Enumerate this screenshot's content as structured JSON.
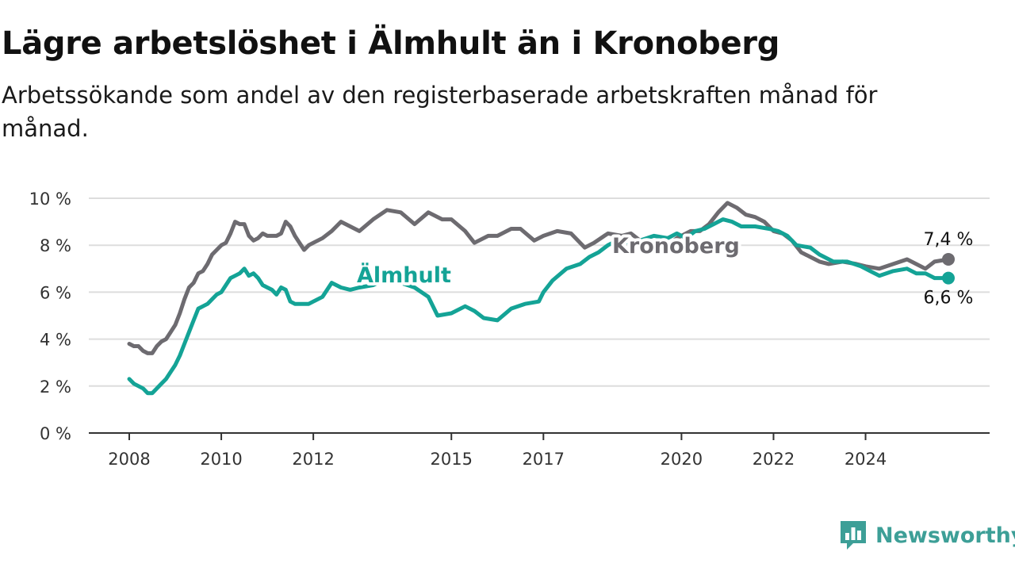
{
  "title": "Lägre arbetslöshet i Älmhult än i Kronoberg",
  "subtitle": "Arbetssökande som andel av den registerbaserade arbetskraften månad för månad.",
  "brand": {
    "name": "Newsworthy",
    "icon": "newsworthy-logo-icon",
    "color": "#3d9f97"
  },
  "colors": {
    "almhult": "#14a396",
    "kronoberg": "#6d6b70",
    "grid": "#dddddd",
    "axis": "#333333"
  },
  "chart_data": {
    "type": "line",
    "xlabel": "",
    "ylabel": "",
    "ylim": [
      0,
      10
    ],
    "xlim": [
      2008,
      2025.8
    ],
    "yticks": [
      0,
      2,
      4,
      6,
      8,
      10
    ],
    "ytick_labels": [
      "0 %",
      "2 %",
      "4 %",
      "6 %",
      "8 %",
      "10 %"
    ],
    "xticks": [
      2008,
      2010,
      2012,
      2015,
      2017,
      2020,
      2022,
      2024
    ],
    "xtick_labels": [
      "2008",
      "2010",
      "2012",
      "2015",
      "2017",
      "2020",
      "2022",
      "2024"
    ],
    "grid": true,
    "legend": "direct labels on lines",
    "series": [
      {
        "name": "Kronoberg",
        "end_label": "7,4 %",
        "points": [
          [
            2008.0,
            3.8
          ],
          [
            2008.1,
            3.7
          ],
          [
            2008.2,
            3.7
          ],
          [
            2008.3,
            3.5
          ],
          [
            2008.4,
            3.4
          ],
          [
            2008.5,
            3.4
          ],
          [
            2008.6,
            3.7
          ],
          [
            2008.7,
            3.9
          ],
          [
            2008.8,
            4.0
          ],
          [
            2008.9,
            4.3
          ],
          [
            2009.0,
            4.6
          ],
          [
            2009.1,
            5.1
          ],
          [
            2009.2,
            5.7
          ],
          [
            2009.3,
            6.2
          ],
          [
            2009.4,
            6.4
          ],
          [
            2009.5,
            6.8
          ],
          [
            2009.6,
            6.9
          ],
          [
            2009.7,
            7.2
          ],
          [
            2009.8,
            7.6
          ],
          [
            2009.9,
            7.8
          ],
          [
            2010.0,
            8.0
          ],
          [
            2010.1,
            8.1
          ],
          [
            2010.2,
            8.5
          ],
          [
            2010.3,
            9.0
          ],
          [
            2010.4,
            8.9
          ],
          [
            2010.5,
            8.9
          ],
          [
            2010.6,
            8.4
          ],
          [
            2010.7,
            8.2
          ],
          [
            2010.8,
            8.3
          ],
          [
            2010.9,
            8.5
          ],
          [
            2011.0,
            8.4
          ],
          [
            2011.1,
            8.4
          ],
          [
            2011.2,
            8.4
          ],
          [
            2011.3,
            8.5
          ],
          [
            2011.4,
            9.0
          ],
          [
            2011.5,
            8.8
          ],
          [
            2011.6,
            8.4
          ],
          [
            2011.7,
            8.1
          ],
          [
            2011.8,
            7.8
          ],
          [
            2011.9,
            8.0
          ],
          [
            2012.0,
            8.1
          ],
          [
            2012.2,
            8.3
          ],
          [
            2012.4,
            8.6
          ],
          [
            2012.6,
            9.0
          ],
          [
            2012.8,
            8.8
          ],
          [
            2013.0,
            8.6
          ],
          [
            2013.3,
            9.1
          ],
          [
            2013.6,
            9.5
          ],
          [
            2013.9,
            9.4
          ],
          [
            2014.2,
            8.9
          ],
          [
            2014.5,
            9.4
          ],
          [
            2014.8,
            9.1
          ],
          [
            2015.0,
            9.1
          ],
          [
            2015.3,
            8.6
          ],
          [
            2015.5,
            8.1
          ],
          [
            2015.8,
            8.4
          ],
          [
            2016.0,
            8.4
          ],
          [
            2016.3,
            8.7
          ],
          [
            2016.5,
            8.7
          ],
          [
            2016.8,
            8.2
          ],
          [
            2017.0,
            8.4
          ],
          [
            2017.3,
            8.6
          ],
          [
            2017.6,
            8.5
          ],
          [
            2017.9,
            7.9
          ],
          [
            2018.1,
            8.1
          ],
          [
            2018.4,
            8.5
          ],
          [
            2018.7,
            8.4
          ],
          [
            2018.9,
            8.5
          ],
          [
            2019.1,
            8.2
          ],
          [
            2019.4,
            8.1
          ],
          [
            2019.7,
            8.0
          ],
          [
            2019.9,
            8.3
          ],
          [
            2020.2,
            8.6
          ],
          [
            2020.4,
            8.6
          ],
          [
            2020.6,
            8.9
          ],
          [
            2020.8,
            9.4
          ],
          [
            2021.0,
            9.8
          ],
          [
            2021.2,
            9.6
          ],
          [
            2021.4,
            9.3
          ],
          [
            2021.6,
            9.2
          ],
          [
            2021.8,
            9.0
          ],
          [
            2022.0,
            8.6
          ],
          [
            2022.2,
            8.5
          ],
          [
            2022.4,
            8.2
          ],
          [
            2022.6,
            7.7
          ],
          [
            2022.8,
            7.5
          ],
          [
            2023.0,
            7.3
          ],
          [
            2023.2,
            7.2
          ],
          [
            2023.5,
            7.3
          ],
          [
            2023.8,
            7.2
          ],
          [
            2024.0,
            7.1
          ],
          [
            2024.3,
            7.0
          ],
          [
            2024.6,
            7.2
          ],
          [
            2024.9,
            7.4
          ],
          [
            2025.1,
            7.2
          ],
          [
            2025.3,
            7.0
          ],
          [
            2025.5,
            7.3
          ],
          [
            2025.8,
            7.4
          ]
        ]
      },
      {
        "name": "Älmhult",
        "end_label": "6,6 %",
        "points": [
          [
            2008.0,
            2.3
          ],
          [
            2008.1,
            2.1
          ],
          [
            2008.2,
            2.0
          ],
          [
            2008.3,
            1.9
          ],
          [
            2008.4,
            1.7
          ],
          [
            2008.5,
            1.7
          ],
          [
            2008.6,
            1.9
          ],
          [
            2008.7,
            2.1
          ],
          [
            2008.8,
            2.3
          ],
          [
            2008.9,
            2.6
          ],
          [
            2009.0,
            2.9
          ],
          [
            2009.1,
            3.3
          ],
          [
            2009.2,
            3.8
          ],
          [
            2009.3,
            4.3
          ],
          [
            2009.4,
            4.8
          ],
          [
            2009.5,
            5.3
          ],
          [
            2009.6,
            5.4
          ],
          [
            2009.7,
            5.5
          ],
          [
            2009.8,
            5.7
          ],
          [
            2009.9,
            5.9
          ],
          [
            2010.0,
            6.0
          ],
          [
            2010.1,
            6.3
          ],
          [
            2010.2,
            6.6
          ],
          [
            2010.3,
            6.7
          ],
          [
            2010.4,
            6.8
          ],
          [
            2010.5,
            7.0
          ],
          [
            2010.6,
            6.7
          ],
          [
            2010.7,
            6.8
          ],
          [
            2010.8,
            6.6
          ],
          [
            2010.9,
            6.3
          ],
          [
            2011.0,
            6.2
          ],
          [
            2011.1,
            6.1
          ],
          [
            2011.2,
            5.9
          ],
          [
            2011.3,
            6.2
          ],
          [
            2011.4,
            6.1
          ],
          [
            2011.5,
            5.6
          ],
          [
            2011.6,
            5.5
          ],
          [
            2011.7,
            5.5
          ],
          [
            2011.8,
            5.5
          ],
          [
            2011.9,
            5.5
          ],
          [
            2012.0,
            5.6
          ],
          [
            2012.2,
            5.8
          ],
          [
            2012.4,
            6.4
          ],
          [
            2012.6,
            6.2
          ],
          [
            2012.8,
            6.1
          ],
          [
            2013.0,
            6.2
          ],
          [
            2013.3,
            6.3
          ],
          [
            2013.6,
            6.6
          ],
          [
            2013.9,
            6.4
          ],
          [
            2014.2,
            6.2
          ],
          [
            2014.5,
            5.8
          ],
          [
            2014.7,
            5.0
          ],
          [
            2015.0,
            5.1
          ],
          [
            2015.3,
            5.4
          ],
          [
            2015.5,
            5.2
          ],
          [
            2015.7,
            4.9
          ],
          [
            2016.0,
            4.8
          ],
          [
            2016.3,
            5.3
          ],
          [
            2016.6,
            5.5
          ],
          [
            2016.9,
            5.6
          ],
          [
            2017.0,
            6.0
          ],
          [
            2017.2,
            6.5
          ],
          [
            2017.5,
            7.0
          ],
          [
            2017.8,
            7.2
          ],
          [
            2018.0,
            7.5
          ],
          [
            2018.2,
            7.7
          ],
          [
            2018.4,
            8.0
          ],
          [
            2018.6,
            8.2
          ],
          [
            2018.9,
            8.1
          ],
          [
            2019.1,
            8.2
          ],
          [
            2019.4,
            8.4
          ],
          [
            2019.7,
            8.3
          ],
          [
            2019.9,
            8.5
          ],
          [
            2020.1,
            8.3
          ],
          [
            2020.3,
            8.6
          ],
          [
            2020.5,
            8.7
          ],
          [
            2020.7,
            8.9
          ],
          [
            2020.9,
            9.1
          ],
          [
            2021.1,
            9.0
          ],
          [
            2021.3,
            8.8
          ],
          [
            2021.6,
            8.8
          ],
          [
            2021.9,
            8.7
          ],
          [
            2022.1,
            8.6
          ],
          [
            2022.3,
            8.4
          ],
          [
            2022.5,
            8.0
          ],
          [
            2022.8,
            7.9
          ],
          [
            2023.0,
            7.6
          ],
          [
            2023.3,
            7.3
          ],
          [
            2023.6,
            7.3
          ],
          [
            2023.9,
            7.1
          ],
          [
            2024.1,
            6.9
          ],
          [
            2024.3,
            6.7
          ],
          [
            2024.6,
            6.9
          ],
          [
            2024.9,
            7.0
          ],
          [
            2025.1,
            6.8
          ],
          [
            2025.3,
            6.8
          ],
          [
            2025.5,
            6.6
          ],
          [
            2025.8,
            6.6
          ]
        ]
      }
    ]
  }
}
